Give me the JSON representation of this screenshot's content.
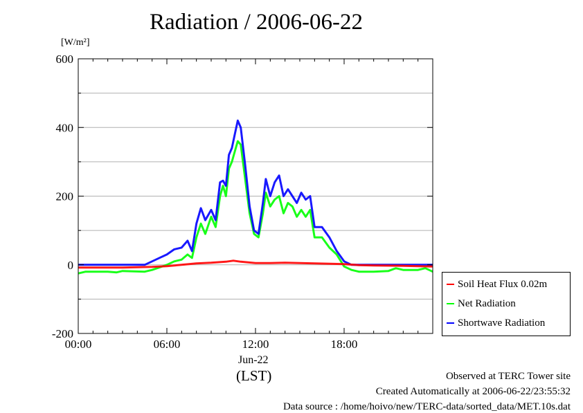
{
  "chart_data": {
    "type": "line",
    "title": "Radiation / 2006-06-22",
    "ylabel_unit": "[W/m²]",
    "xlabel_date": "Jun-22",
    "xlabel_tz": "(LST)",
    "ylim": [
      -200,
      600
    ],
    "xlim_hours": [
      0,
      24
    ],
    "yticks": [
      -200,
      0,
      200,
      400,
      600
    ],
    "ytick_labels": [
      "-200",
      "0",
      "200",
      "400",
      "600"
    ],
    "xtick_hours": [
      0,
      6,
      12,
      18
    ],
    "xtick_labels": [
      "00:00",
      "06:00",
      "12:00",
      "18:00"
    ],
    "grid": "horizontal",
    "legend_position": "right-bottom-outside",
    "series": [
      {
        "name": "Soil Heat Flux 0.02m",
        "color": "#ff0000",
        "x": [
          0,
          3,
          5,
          6,
          7,
          8,
          9,
          10,
          10.5,
          11,
          12,
          13,
          14,
          15,
          16,
          17,
          18,
          19,
          20,
          22,
          24
        ],
        "y": [
          -8,
          -8,
          -6,
          -4,
          0,
          4,
          6,
          9,
          12,
          9,
          5,
          5,
          6,
          5,
          4,
          3,
          2,
          -1,
          -2,
          -3,
          -5
        ]
      },
      {
        "name": "Net Radiation",
        "color": "#00ff00",
        "x": [
          0,
          0.5,
          2,
          2.6,
          3,
          4.5,
          5,
          6,
          6.5,
          7,
          7.4,
          7.7,
          8,
          8.3,
          8.6,
          9,
          9.3,
          9.6,
          9.8,
          10,
          10.2,
          10.4,
          10.6,
          10.8,
          11,
          11.3,
          11.6,
          11.9,
          12.2,
          12.5,
          12.7,
          13,
          13.3,
          13.6,
          13.9,
          14.2,
          14.5,
          14.8,
          15.1,
          15.4,
          15.7,
          16,
          16.5,
          17,
          17.5,
          18,
          18.5,
          19,
          20,
          21,
          21.5,
          22,
          23,
          23.5,
          24
        ],
        "y": [
          -25,
          -20,
          -20,
          -22,
          -18,
          -20,
          -15,
          0,
          10,
          15,
          30,
          20,
          80,
          120,
          90,
          140,
          110,
          200,
          230,
          200,
          280,
          300,
          330,
          360,
          350,
          250,
          150,
          90,
          80,
          150,
          210,
          170,
          190,
          200,
          150,
          180,
          170,
          140,
          160,
          140,
          160,
          80,
          80,
          50,
          30,
          -5,
          -15,
          -20,
          -20,
          -18,
          -10,
          -15,
          -15,
          -10,
          -20
        ]
      },
      {
        "name": "Shortwave Radiation",
        "color": "#0000ff",
        "x": [
          0,
          4.5,
          5,
          5.5,
          6,
          6.5,
          7,
          7.4,
          7.7,
          8,
          8.3,
          8.6,
          9,
          9.3,
          9.6,
          9.8,
          10,
          10.2,
          10.4,
          10.6,
          10.8,
          11,
          11.3,
          11.6,
          11.9,
          12.2,
          12.5,
          12.7,
          13,
          13.3,
          13.6,
          13.9,
          14.2,
          14.5,
          14.8,
          15.1,
          15.4,
          15.7,
          16,
          16.5,
          17,
          17.5,
          18,
          18.5,
          19,
          20,
          24
        ],
        "y": [
          0,
          0,
          10,
          20,
          30,
          45,
          50,
          70,
          40,
          120,
          165,
          130,
          160,
          130,
          240,
          245,
          230,
          320,
          340,
          380,
          420,
          400,
          290,
          170,
          100,
          90,
          180,
          250,
          200,
          240,
          260,
          200,
          220,
          200,
          180,
          210,
          190,
          200,
          110,
          110,
          80,
          40,
          10,
          0,
          0,
          0,
          0
        ]
      }
    ]
  },
  "notes": {
    "site": "Observed at TERC Tower site",
    "created": "Created Automatically at 2006-06-22/23:55:32",
    "source": "Data source : /home/hoivo/new/TERC-data/sorted_data/MET.10s.dat"
  }
}
